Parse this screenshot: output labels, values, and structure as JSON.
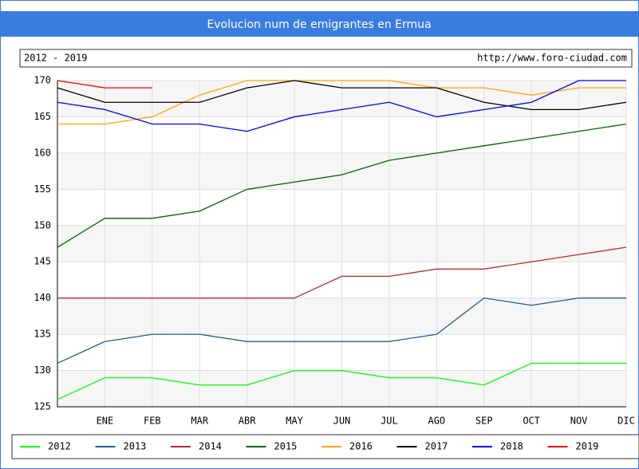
{
  "chart_data": {
    "type": "line",
    "title": "Evolucion num de emigrantes en Ermua",
    "subtitle": "2012 - 2019",
    "source": "http://www.foro-ciudad.com",
    "categories": [
      null,
      "ENE",
      "FEB",
      "MAR",
      "ABR",
      "MAY",
      "JUN",
      "JUL",
      "AGO",
      "SEP",
      "OCT",
      "NOV",
      "DIC"
    ],
    "series": [
      {
        "name": "2012",
        "color": "#00ff00",
        "values": [
          126,
          129,
          129,
          128,
          128,
          130,
          130,
          129,
          129,
          128,
          131,
          131,
          131
        ]
      },
      {
        "name": "2013",
        "color": "#1f5f8b",
        "values": [
          131,
          134,
          135,
          135,
          134,
          134,
          134,
          134,
          135,
          140,
          139,
          140,
          140
        ]
      },
      {
        "name": "2014",
        "color": "#b03030",
        "values": [
          140,
          140,
          140,
          140,
          140,
          140,
          143,
          143,
          144,
          144,
          145,
          146,
          147
        ]
      },
      {
        "name": "2015",
        "color": "#006400",
        "values": [
          147,
          151,
          151,
          152,
          155,
          156,
          157,
          159,
          160,
          161,
          162,
          163,
          164
        ]
      },
      {
        "name": "2016",
        "color": "#ffa500",
        "values": [
          164,
          164,
          165,
          168,
          170,
          170,
          170,
          170,
          169,
          169,
          168,
          169,
          169
        ]
      },
      {
        "name": "2017",
        "color": "#000000",
        "values": [
          169,
          167,
          167,
          167,
          169,
          170,
          169,
          169,
          169,
          167,
          166,
          166,
          167
        ]
      },
      {
        "name": "2018",
        "color": "#0000ff",
        "values": [
          167,
          166,
          164,
          164,
          163,
          165,
          166,
          167,
          165,
          166,
          167,
          170,
          170
        ]
      },
      {
        "name": "2019",
        "color": "#ff0000",
        "values": [
          170,
          169,
          169,
          null,
          null,
          null,
          null,
          null,
          null,
          null,
          null,
          null,
          null
        ]
      }
    ],
    "ylim": [
      125,
      170
    ],
    "yticks": [
      125,
      130,
      135,
      140,
      145,
      150,
      155,
      160,
      165,
      170
    ],
    "grid": true
  }
}
